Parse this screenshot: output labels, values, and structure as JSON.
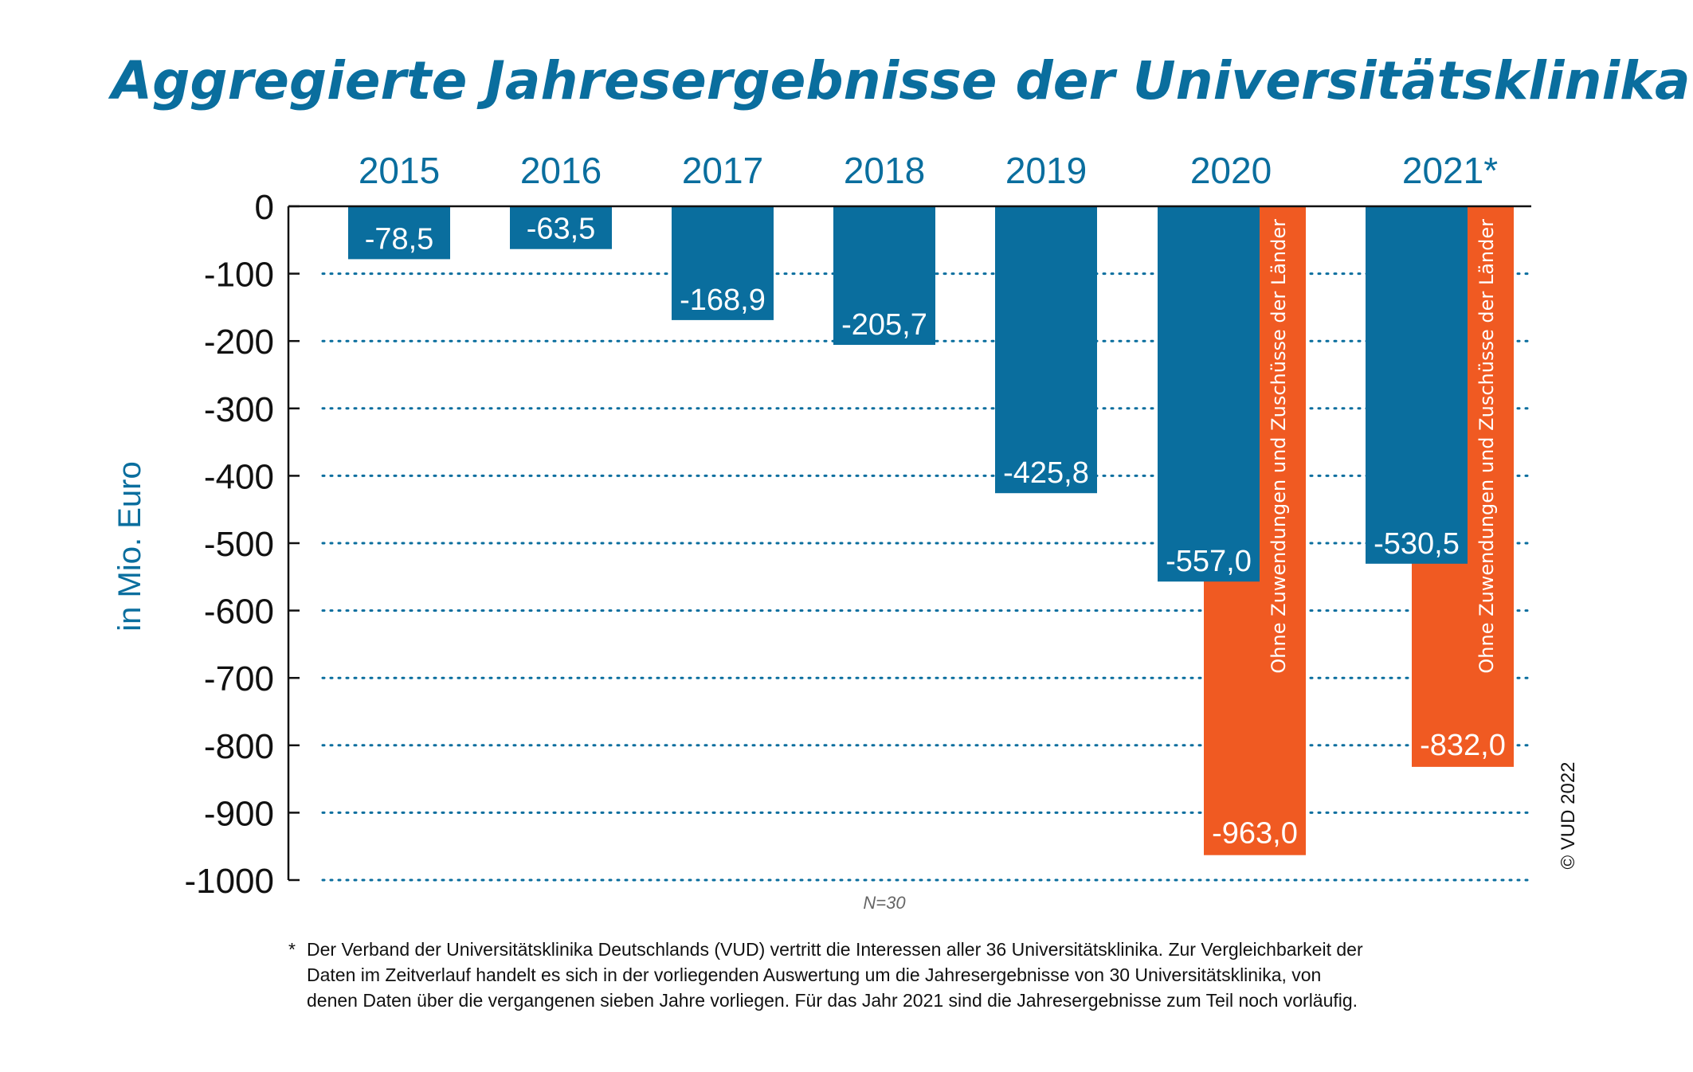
{
  "chart_data": {
    "type": "bar",
    "title": "Aggregierte Jahresergebnisse der Universitätsklinika",
    "ylabel": "in Mio. Euro",
    "ylim": [
      -1000,
      0
    ],
    "yticks": [
      0,
      -100,
      -200,
      -300,
      -400,
      -500,
      -600,
      -700,
      -800,
      -900,
      -1000
    ],
    "grid": true,
    "categories": [
      "2015",
      "2016",
      "2017",
      "2018",
      "2019",
      "2020",
      "2021*"
    ],
    "series": [
      {
        "color": "#0a6e9e",
        "values": [
          -78.5,
          -63.5,
          -168.9,
          -205.7,
          -425.8,
          -557.0,
          -530.5
        ],
        "labels": [
          "-78,5",
          "-63,5",
          "-168,9",
          "-205,7",
          "-425,8",
          "-557,0",
          "-530,5"
        ]
      },
      {
        "name": "Ohne Zuwendungen und Zuschüsse der Länder",
        "color": "#f05a22",
        "values": [
          null,
          null,
          null,
          null,
          null,
          -963.0,
          -832.0
        ],
        "labels": [
          null,
          null,
          null,
          null,
          null,
          "-963,0",
          "-832,0"
        ]
      }
    ],
    "note": "N=30",
    "copyright": "© VUD 2022"
  },
  "footnote": {
    "marker": "*",
    "lines": [
      "Der Verband der Universitätsklinika Deutschlands (VUD) vertritt die Interessen aller 36 Universitätsklinika. Zur Vergleichbarkeit der",
      "Daten im Zeitverlauf handelt es sich in der vorliegenden Auswertung um die Jahresergebnisse von 30 Universitätsklinika, von",
      "denen Daten über die vergangenen sieben Jahre vorliegen. Für das Jahr 2021 sind die Jahresergebnisse zum Teil noch vorläufig."
    ]
  }
}
